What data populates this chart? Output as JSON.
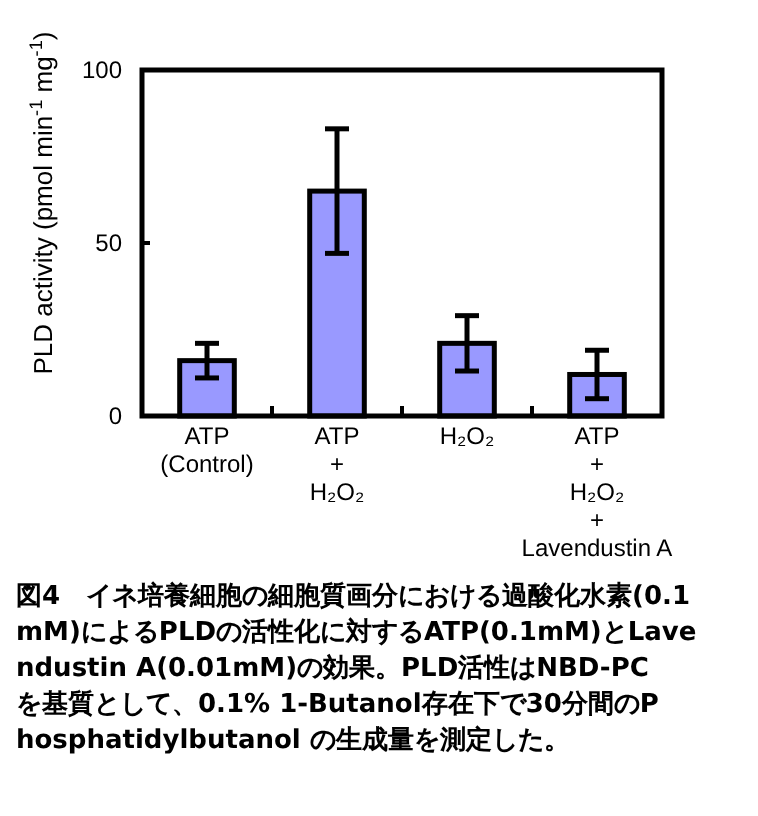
{
  "chart_data": {
    "type": "bar",
    "ylabel": "PLD activity (pmol min$^{-1}$ mg$^{-1}$)",
    "categories": [
      "ATP\n(Control)",
      "ATP\n+\nH₂O₂",
      "H₂O₂",
      "ATP\n+\nH₂O₂\n+\nLavendustin A"
    ],
    "values": [
      16,
      65,
      21,
      12
    ],
    "errors": [
      5,
      18,
      8,
      7
    ],
    "color": "#9999ff",
    "ylim": [
      0,
      100
    ],
    "yticks": [
      0,
      50,
      100
    ],
    "grid": false,
    "annotations": [
      "図4　イネ培養細胞の細胞質画分における過酸化水素(0.1mM)によるPLDの活性化に対するATP(0.1mM)とLavendustin A(0.01mM)の効果。PLD活性はNBD-PCを基質として、0.1% 1-Butanol存在下で30分間のPhosphatidylbutanol の生成量を測定した。"
    ]
  }
}
